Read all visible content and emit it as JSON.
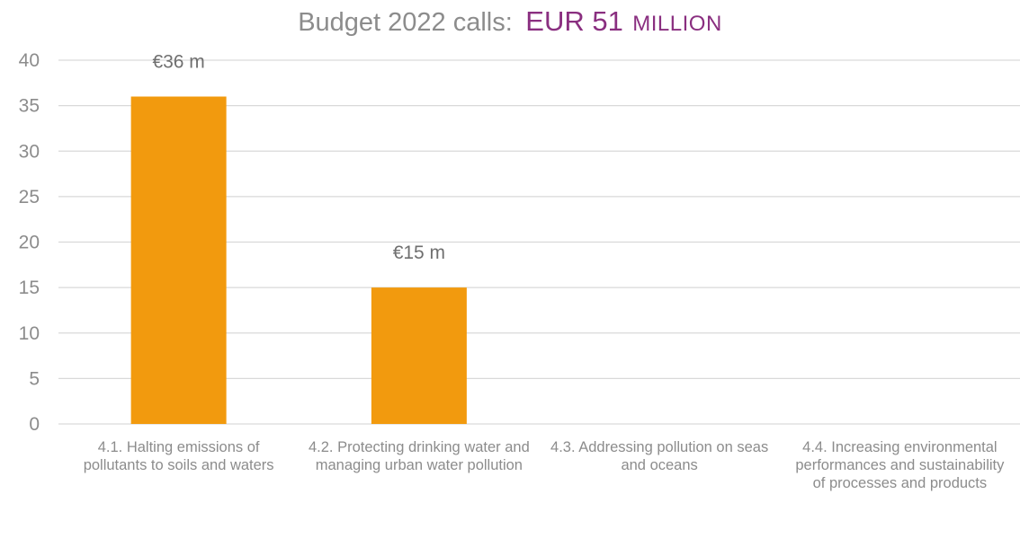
{
  "chart_data": {
    "type": "bar",
    "title": {
      "lead": "Budget 2022 calls:",
      "amount": "EUR 51",
      "unit": "MILLION"
    },
    "categories": [
      "4.1. Halting emissions of pollutants to soils and waters",
      "4.2. Protecting drinking water and managing urban water pollution",
      "4.3. Addressing pollution on seas and oceans",
      "4.4. Increasing environmental performances and sustainability of processes and products"
    ],
    "values": [
      36,
      15,
      0,
      0
    ],
    "data_labels": [
      "€36 m",
      "€15 m",
      "",
      ""
    ],
    "ylim": [
      0,
      40
    ],
    "yticks": [
      0,
      5,
      10,
      15,
      20,
      25,
      30,
      35,
      40
    ],
    "grid": true,
    "legend": "none",
    "colors": {
      "bar": "#f29a0e",
      "grid": "#d9d9d9",
      "accent": "#8a2f80"
    }
  }
}
